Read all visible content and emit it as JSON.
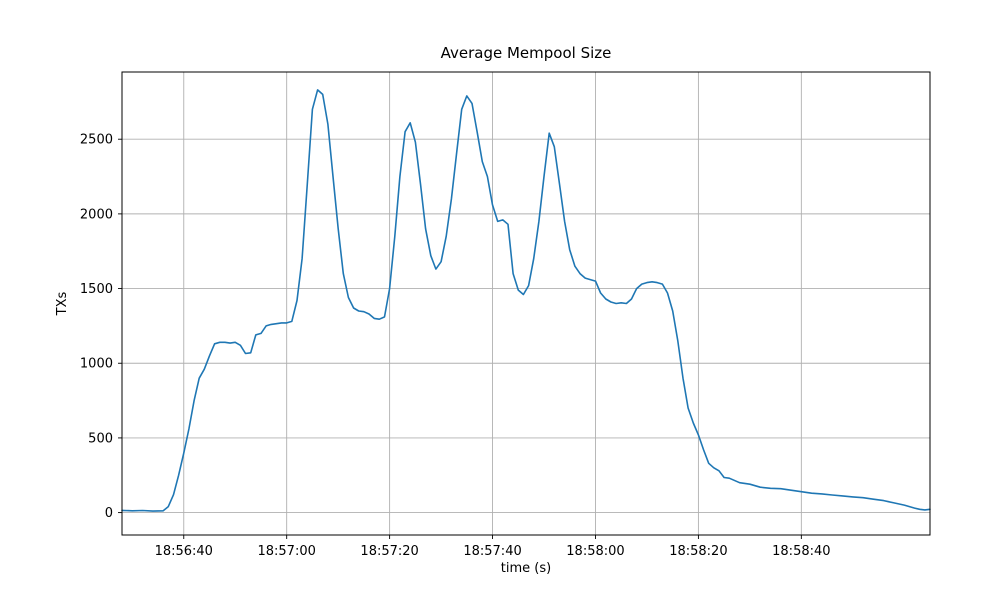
{
  "page": {
    "background": "#ffffff"
  },
  "chart_data": {
    "type": "line",
    "title": "Average Mempool Size",
    "xlabel": "time (s)",
    "ylabel": "TXs",
    "grid": true,
    "legend": "none",
    "colors": {
      "line": "#1f77b4",
      "grid": "#b0b0b0",
      "axis": "#000000",
      "background": "#ffffff"
    },
    "xlim": [
      0,
      157
    ],
    "ylim": [
      -150,
      2950
    ],
    "xticks": {
      "positions": [
        12,
        32,
        52,
        72,
        92,
        112,
        132
      ],
      "labels": [
        "18:56:40",
        "18:57:00",
        "18:57:20",
        "18:57:40",
        "18:58:00",
        "18:58:20",
        "18:58:40"
      ]
    },
    "yticks": {
      "positions": [
        0,
        500,
        1000,
        1500,
        2000,
        2500
      ],
      "labels": [
        "0",
        "500",
        "1000",
        "1500",
        "2000",
        "2500"
      ]
    },
    "series": [
      {
        "name": "average-mempool-size",
        "x": [
          0,
          2,
          4,
          6,
          8,
          9,
          10,
          11,
          12,
          13,
          14,
          15,
          16,
          17,
          18,
          19,
          20,
          21,
          22,
          23,
          24,
          25,
          26,
          27,
          28,
          29,
          30,
          31,
          32,
          33,
          34,
          35,
          36,
          37,
          38,
          39,
          40,
          41,
          42,
          43,
          44,
          45,
          46,
          47,
          48,
          49,
          50,
          51,
          52,
          53,
          54,
          55,
          56,
          57,
          58,
          59,
          60,
          61,
          62,
          63,
          64,
          65,
          66,
          67,
          68,
          69,
          70,
          71,
          72,
          73,
          74,
          75,
          76,
          77,
          78,
          79,
          80,
          81,
          82,
          83,
          84,
          85,
          86,
          87,
          88,
          89,
          90,
          91,
          92,
          93,
          94,
          95,
          96,
          97,
          98,
          99,
          100,
          101,
          102,
          103,
          104,
          105,
          106,
          107,
          108,
          109,
          110,
          111,
          112,
          113,
          114,
          115,
          116,
          117,
          118,
          120,
          122,
          124,
          126,
          128,
          130,
          132,
          134,
          136,
          138,
          140,
          142,
          144,
          146,
          148,
          150,
          152,
          154,
          155,
          156,
          157
        ],
        "y": [
          15,
          12,
          14,
          10,
          12,
          40,
          120,
          250,
          400,
          560,
          750,
          900,
          960,
          1050,
          1130,
          1140,
          1140,
          1135,
          1140,
          1120,
          1065,
          1070,
          1190,
          1200,
          1250,
          1260,
          1265,
          1270,
          1270,
          1280,
          1420,
          1700,
          2200,
          2700,
          2830,
          2800,
          2600,
          2250,
          1900,
          1600,
          1440,
          1370,
          1350,
          1345,
          1330,
          1300,
          1295,
          1310,
          1500,
          1850,
          2250,
          2550,
          2610,
          2480,
          2200,
          1900,
          1720,
          1630,
          1680,
          1850,
          2100,
          2400,
          2700,
          2790,
          2740,
          2550,
          2350,
          2250,
          2060,
          1950,
          1960,
          1930,
          1600,
          1490,
          1460,
          1520,
          1700,
          1950,
          2250,
          2540,
          2450,
          2200,
          1950,
          1760,
          1650,
          1600,
          1570,
          1560,
          1550,
          1470,
          1430,
          1410,
          1400,
          1405,
          1400,
          1430,
          1500,
          1530,
          1540,
          1545,
          1540,
          1530,
          1470,
          1350,
          1150,
          900,
          700,
          600,
          520,
          420,
          330,
          300,
          280,
          235,
          230,
          200,
          190,
          170,
          163,
          160,
          150,
          140,
          130,
          125,
          118,
          112,
          105,
          100,
          90,
          80,
          65,
          50,
          30,
          22,
          18,
          22
        ]
      }
    ]
  }
}
